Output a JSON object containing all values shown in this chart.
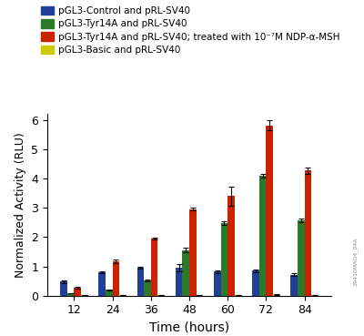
{
  "time_points": [
    12,
    24,
    36,
    48,
    60,
    72,
    84
  ],
  "blue_values": [
    0.48,
    0.8,
    0.97,
    0.95,
    0.82,
    0.85,
    0.72
  ],
  "green_values": [
    0.08,
    0.2,
    0.52,
    1.55,
    2.48,
    4.1,
    2.58
  ],
  "red_values": [
    0.27,
    1.18,
    1.95,
    2.96,
    3.4,
    5.82,
    4.27
  ],
  "yellow_values": [
    0.03,
    0.03,
    0.03,
    0.03,
    0.03,
    0.04,
    0.03
  ],
  "blue_errors": [
    0.04,
    0.03,
    0.03,
    0.12,
    0.04,
    0.04,
    0.05
  ],
  "green_errors": [
    0.01,
    0.02,
    0.03,
    0.08,
    0.05,
    0.06,
    0.07
  ],
  "red_errors": [
    0.03,
    0.06,
    0.04,
    0.05,
    0.32,
    0.18,
    0.1
  ],
  "yellow_errors": [
    0.005,
    0.005,
    0.005,
    0.005,
    0.005,
    0.005,
    0.005
  ],
  "blue_color": "#1f3f99",
  "green_color": "#2a7a2a",
  "red_color": "#cc2200",
  "yellow_color": "#cccc00",
  "legend_labels": [
    "pGL3-Control and pRL-SV40",
    "pGL3-Tyr14A and pRL-SV40",
    "pGL3-Tyr14A and pRL-SV40; treated with 10⁻⁷M NDP-α-MSH",
    "pGL3-Basic and pRL-SV40"
  ],
  "ylabel": "Normalized Activity (RLU)",
  "xlabel": "Time (hours)",
  "ylim": [
    0,
    6.2
  ],
  "yticks": [
    0,
    1,
    2,
    3,
    4,
    5,
    6
  ],
  "bar_width": 0.18,
  "figsize": [
    4.0,
    3.69
  ],
  "dpi": 100,
  "background_color": "#ffffff",
  "watermark": "29410MAO4_04A"
}
